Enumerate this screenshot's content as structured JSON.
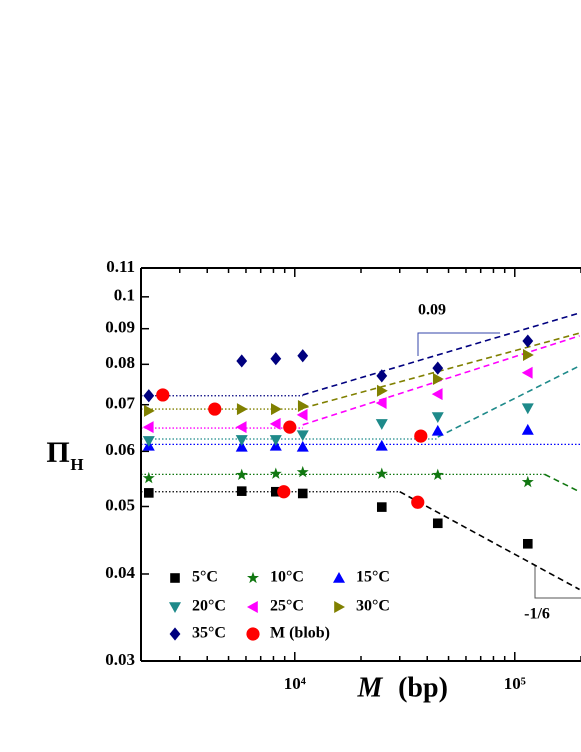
{
  "chart_data": {
    "type": "scatter",
    "y_label": "Π",
    "y_label_sub": "H",
    "x_label": "M",
    "x_label_unit": "(bp)",
    "log_x": true,
    "log_y": true,
    "xlim": [
      2000,
      1000000
    ],
    "ylim": [
      0.03,
      0.11
    ],
    "xticks": [
      {
        "value": 10000,
        "label": "10⁴"
      },
      {
        "value": 100000,
        "label": "10⁵"
      }
    ],
    "xminorticks": [
      3000,
      4000,
      5000,
      6000,
      7000,
      8000,
      9000,
      20000,
      30000,
      40000,
      50000,
      60000,
      70000,
      80000,
      90000,
      200000,
      300000
    ],
    "yticks": [
      0.03,
      0.04,
      0.05,
      0.06,
      0.07,
      0.08,
      0.09,
      0.1,
      0.11
    ],
    "legend": "lower left",
    "series": [
      {
        "name": "5°C",
        "color": "#000000",
        "marker": "square",
        "x": [
          2170,
          5740,
          8200,
          10870,
          24860,
          44670,
          114600
        ],
        "values": [
          0.0523,
          0.0526,
          0.0525,
          0.0522,
          0.0499,
          0.0473,
          0.0442
        ]
      },
      {
        "name": "10°C",
        "color": "#117711",
        "marker": "star",
        "x": [
          2170,
          5740,
          8200,
          10870,
          24860,
          44670,
          114600
        ],
        "values": [
          0.0549,
          0.0555,
          0.0557,
          0.056,
          0.0557,
          0.0555,
          0.0542
        ]
      },
      {
        "name": "15°C",
        "color": "#0000ff",
        "marker": "triangle-up",
        "x": [
          2170,
          5740,
          8200,
          10870,
          24860,
          44670,
          114600
        ],
        "values": [
          0.0611,
          0.0609,
          0.0611,
          0.0609,
          0.0611,
          0.0642,
          0.0644
        ]
      },
      {
        "name": "20°C",
        "color": "#1e8a8a",
        "marker": "triangle-down",
        "x": [
          2170,
          5740,
          8200,
          10870,
          24860,
          44670,
          114600
        ],
        "values": [
          0.0621,
          0.0623,
          0.0623,
          0.0633,
          0.0657,
          0.0672,
          0.0692
        ]
      },
      {
        "name": "25°C",
        "color": "#ff00ff",
        "marker": "triangle-left",
        "x": [
          2170,
          5740,
          8200,
          10870,
          24860,
          44670,
          114600
        ],
        "values": [
          0.065,
          0.065,
          0.0657,
          0.0677,
          0.0704,
          0.0725,
          0.0778
        ]
      },
      {
        "name": "30°C",
        "color": "#808000",
        "marker": "triangle-right",
        "x": [
          2170,
          5740,
          8200,
          10870,
          24860,
          44670,
          114600
        ],
        "values": [
          0.0686,
          0.069,
          0.069,
          0.0697,
          0.0733,
          0.0762,
          0.0825
        ]
      },
      {
        "name": "35°C",
        "color": "#00007f",
        "marker": "diamond",
        "x": [
          2170,
          5740,
          8200,
          10870,
          24860,
          44670,
          114600
        ],
        "values": [
          0.0721,
          0.0809,
          0.0815,
          0.0823,
          0.077,
          0.079,
          0.0864
        ]
      },
      {
        "name": "M (blob)",
        "color": "#ff0000",
        "marker": "circle",
        "x": [
          2512,
          4329,
          9490,
          8913,
          37400,
          36230
        ],
        "values": [
          0.0723,
          0.069,
          0.065,
          0.0525,
          0.0631,
          0.0507
        ]
      }
    ],
    "fits": [
      {
        "color": "#000000",
        "style": "dotted",
        "x": [
          2000,
          30000
        ],
        "values": [
          0.0525,
          0.0525
        ]
      },
      {
        "color": "#000000",
        "style": "dashed",
        "x": [
          30000,
          197000
        ],
        "values": [
          0.0525,
          0.038
        ]
      },
      {
        "color": "#117711",
        "style": "dotted",
        "x": [
          2000,
          136800
        ],
        "values": [
          0.0556,
          0.0556
        ]
      },
      {
        "color": "#117711",
        "style": "dashed",
        "x": [
          136800,
          197000
        ],
        "values": [
          0.0556,
          0.0525
        ]
      },
      {
        "color": "#0000ff",
        "style": "dotted",
        "x": [
          2000,
          1000000
        ],
        "values": [
          0.0614,
          0.0614
        ]
      },
      {
        "color": "#1e8a8a",
        "style": "dotted",
        "x": [
          2000,
          44670
        ],
        "values": [
          0.0625,
          0.0625
        ]
      },
      {
        "color": "#1e8a8a",
        "style": "dashed",
        "x": [
          44670,
          197000
        ],
        "values": [
          0.0629,
          0.0796
        ]
      },
      {
        "color": "#ff00ff",
        "style": "dotted",
        "x": [
          2000,
          10870
        ],
        "values": [
          0.0648,
          0.0648
        ]
      },
      {
        "color": "#ff00ff",
        "style": "dashed",
        "x": [
          10870,
          197000
        ],
        "values": [
          0.0655,
          0.0879
        ]
      },
      {
        "color": "#808000",
        "style": "dotted",
        "x": [
          2000,
          10870
        ],
        "values": [
          0.069,
          0.069
        ]
      },
      {
        "color": "#808000",
        "style": "dashed",
        "x": [
          10870,
          197000
        ],
        "values": [
          0.0692,
          0.0887
        ]
      },
      {
        "color": "#00007f",
        "style": "dotted",
        "x": [
          2000,
          10870
        ],
        "values": [
          0.0721,
          0.0721
        ]
      },
      {
        "color": "#00007f",
        "style": "dashed",
        "x": [
          10870,
          197000
        ],
        "values": [
          0.0723,
          0.0948
        ]
      }
    ],
    "annotations": [
      "0.09",
      "-1/6"
    ]
  }
}
